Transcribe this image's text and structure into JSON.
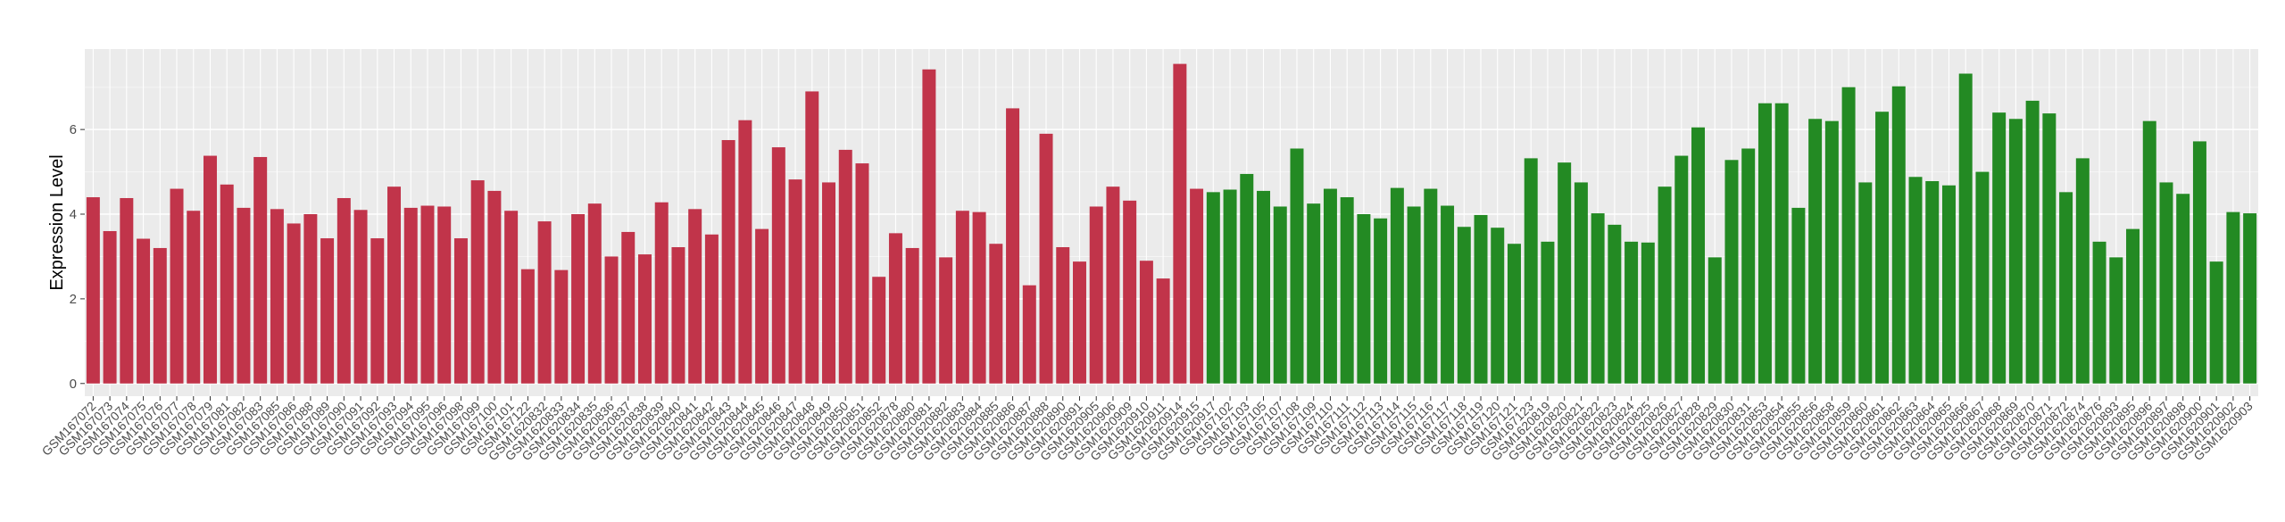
{
  "chart_data": {
    "type": "bar",
    "title": "",
    "xlabel": "",
    "ylabel": "Expression Level",
    "ylim": [
      -0.3,
      7.9
    ],
    "yticks": [
      0,
      2,
      4,
      6
    ],
    "grid": true,
    "legend": "none",
    "colors": {
      "group_a": "#C1344A",
      "group_b": "#238A23",
      "panel_bg": "#EBEBEB",
      "grid_major": "#FFFFFF"
    },
    "bars": [
      {
        "label": "GSM167072",
        "value": 4.4,
        "group": "a"
      },
      {
        "label": "GSM167073",
        "value": 3.6,
        "group": "a"
      },
      {
        "label": "GSM167074",
        "value": 4.38,
        "group": "a"
      },
      {
        "label": "GSM167075",
        "value": 3.42,
        "group": "a"
      },
      {
        "label": "GSM167076",
        "value": 3.2,
        "group": "a"
      },
      {
        "label": "GSM167077",
        "value": 4.6,
        "group": "a"
      },
      {
        "label": "GSM167078",
        "value": 4.08,
        "group": "a"
      },
      {
        "label": "GSM167079",
        "value": 5.38,
        "group": "a"
      },
      {
        "label": "GSM167081",
        "value": 4.7,
        "group": "a"
      },
      {
        "label": "GSM167082",
        "value": 4.15,
        "group": "a"
      },
      {
        "label": "GSM167083",
        "value": 5.35,
        "group": "a"
      },
      {
        "label": "GSM167085",
        "value": 4.12,
        "group": "a"
      },
      {
        "label": "GSM167086",
        "value": 3.78,
        "group": "a"
      },
      {
        "label": "GSM167088",
        "value": 4.0,
        "group": "a"
      },
      {
        "label": "GSM167089",
        "value": 3.43,
        "group": "a"
      },
      {
        "label": "GSM167090",
        "value": 4.38,
        "group": "a"
      },
      {
        "label": "GSM167091",
        "value": 4.1,
        "group": "a"
      },
      {
        "label": "GSM167092",
        "value": 3.43,
        "group": "a"
      },
      {
        "label": "GSM167093",
        "value": 4.65,
        "group": "a"
      },
      {
        "label": "GSM167094",
        "value": 4.15,
        "group": "a"
      },
      {
        "label": "GSM167095",
        "value": 4.2,
        "group": "a"
      },
      {
        "label": "GSM167096",
        "value": 4.18,
        "group": "a"
      },
      {
        "label": "GSM167098",
        "value": 3.43,
        "group": "a"
      },
      {
        "label": "GSM167099",
        "value": 4.8,
        "group": "a"
      },
      {
        "label": "GSM167100",
        "value": 4.55,
        "group": "a"
      },
      {
        "label": "GSM167101",
        "value": 4.08,
        "group": "a"
      },
      {
        "label": "GSM167122",
        "value": 2.7,
        "group": "a"
      },
      {
        "label": "GSM1620832",
        "value": 3.83,
        "group": "a"
      },
      {
        "label": "GSM1620833",
        "value": 2.68,
        "group": "a"
      },
      {
        "label": "GSM1620834",
        "value": 4.0,
        "group": "a"
      },
      {
        "label": "GSM1620835",
        "value": 4.25,
        "group": "a"
      },
      {
        "label": "GSM1620836",
        "value": 3.0,
        "group": "a"
      },
      {
        "label": "GSM1620837",
        "value": 3.58,
        "group": "a"
      },
      {
        "label": "GSM1620838",
        "value": 3.05,
        "group": "a"
      },
      {
        "label": "GSM1620839",
        "value": 4.28,
        "group": "a"
      },
      {
        "label": "GSM1620840",
        "value": 3.22,
        "group": "a"
      },
      {
        "label": "GSM1620841",
        "value": 4.12,
        "group": "a"
      },
      {
        "label": "GSM1620842",
        "value": 3.52,
        "group": "a"
      },
      {
        "label": "GSM1620843",
        "value": 5.75,
        "group": "a"
      },
      {
        "label": "GSM1620844",
        "value": 6.22,
        "group": "a"
      },
      {
        "label": "GSM1620845",
        "value": 3.65,
        "group": "a"
      },
      {
        "label": "GSM1620846",
        "value": 5.58,
        "group": "a"
      },
      {
        "label": "GSM1620847",
        "value": 4.82,
        "group": "a"
      },
      {
        "label": "GSM1620848",
        "value": 6.9,
        "group": "a"
      },
      {
        "label": "GSM1620849",
        "value": 4.75,
        "group": "a"
      },
      {
        "label": "GSM1620850",
        "value": 5.52,
        "group": "a"
      },
      {
        "label": "GSM1620851",
        "value": 5.2,
        "group": "a"
      },
      {
        "label": "GSM1620852",
        "value": 2.52,
        "group": "a"
      },
      {
        "label": "GSM1620878",
        "value": 3.55,
        "group": "a"
      },
      {
        "label": "GSM1620880",
        "value": 3.2,
        "group": "a"
      },
      {
        "label": "GSM1620881",
        "value": 7.42,
        "group": "a"
      },
      {
        "label": "GSM1620882",
        "value": 2.98,
        "group": "a"
      },
      {
        "label": "GSM1620883",
        "value": 4.08,
        "group": "a"
      },
      {
        "label": "GSM1620884",
        "value": 4.05,
        "group": "a"
      },
      {
        "label": "GSM1620885",
        "value": 3.3,
        "group": "a"
      },
      {
        "label": "GSM1620886",
        "value": 6.5,
        "group": "a"
      },
      {
        "label": "GSM1620887",
        "value": 2.32,
        "group": "a"
      },
      {
        "label": "GSM1620888",
        "value": 5.9,
        "group": "a"
      },
      {
        "label": "GSM1620890",
        "value": 3.22,
        "group": "a"
      },
      {
        "label": "GSM1620891",
        "value": 2.88,
        "group": "a"
      },
      {
        "label": "GSM1620905",
        "value": 4.18,
        "group": "a"
      },
      {
        "label": "GSM1620906",
        "value": 4.65,
        "group": "a"
      },
      {
        "label": "GSM1620909",
        "value": 4.32,
        "group": "a"
      },
      {
        "label": "GSM1620910",
        "value": 2.9,
        "group": "a"
      },
      {
        "label": "GSM1620911",
        "value": 2.48,
        "group": "a"
      },
      {
        "label": "GSM1620914",
        "value": 7.55,
        "group": "a"
      },
      {
        "label": "GSM1620915",
        "value": 4.6,
        "group": "a"
      },
      {
        "label": "GSM1620917",
        "value": 4.52,
        "group": "b"
      },
      {
        "label": "GSM167102",
        "value": 4.58,
        "group": "b"
      },
      {
        "label": "GSM167103",
        "value": 4.95,
        "group": "b"
      },
      {
        "label": "GSM167105",
        "value": 4.55,
        "group": "b"
      },
      {
        "label": "GSM167107",
        "value": 4.18,
        "group": "b"
      },
      {
        "label": "GSM167108",
        "value": 5.55,
        "group": "b"
      },
      {
        "label": "GSM167109",
        "value": 4.25,
        "group": "b"
      },
      {
        "label": "GSM167110",
        "value": 4.6,
        "group": "b"
      },
      {
        "label": "GSM167111",
        "value": 4.4,
        "group": "b"
      },
      {
        "label": "GSM167112",
        "value": 4.0,
        "group": "b"
      },
      {
        "label": "GSM167113",
        "value": 3.9,
        "group": "b"
      },
      {
        "label": "GSM167114",
        "value": 4.62,
        "group": "b"
      },
      {
        "label": "GSM167115",
        "value": 4.18,
        "group": "b"
      },
      {
        "label": "GSM167116",
        "value": 4.6,
        "group": "b"
      },
      {
        "label": "GSM167117",
        "value": 4.2,
        "group": "b"
      },
      {
        "label": "GSM167118",
        "value": 3.7,
        "group": "b"
      },
      {
        "label": "GSM167119",
        "value": 3.98,
        "group": "b"
      },
      {
        "label": "GSM167120",
        "value": 3.68,
        "group": "b"
      },
      {
        "label": "GSM167121",
        "value": 3.3,
        "group": "b"
      },
      {
        "label": "GSM167123",
        "value": 5.32,
        "group": "b"
      },
      {
        "label": "GSM1620819",
        "value": 3.35,
        "group": "b"
      },
      {
        "label": "GSM1620820",
        "value": 5.22,
        "group": "b"
      },
      {
        "label": "GSM1620821",
        "value": 4.75,
        "group": "b"
      },
      {
        "label": "GSM1620822",
        "value": 4.02,
        "group": "b"
      },
      {
        "label": "GSM1620823",
        "value": 3.75,
        "group": "b"
      },
      {
        "label": "GSM1620824",
        "value": 3.35,
        "group": "b"
      },
      {
        "label": "GSM1620825",
        "value": 3.33,
        "group": "b"
      },
      {
        "label": "GSM1620826",
        "value": 4.65,
        "group": "b"
      },
      {
        "label": "GSM1620827",
        "value": 5.38,
        "group": "b"
      },
      {
        "label": "GSM1620828",
        "value": 6.05,
        "group": "b"
      },
      {
        "label": "GSM1620829",
        "value": 2.98,
        "group": "b"
      },
      {
        "label": "GSM1620830",
        "value": 5.28,
        "group": "b"
      },
      {
        "label": "GSM1620831",
        "value": 5.55,
        "group": "b"
      },
      {
        "label": "GSM1620853",
        "value": 6.62,
        "group": "b"
      },
      {
        "label": "GSM1620854",
        "value": 6.62,
        "group": "b"
      },
      {
        "label": "GSM1620855",
        "value": 4.15,
        "group": "b"
      },
      {
        "label": "GSM1620856",
        "value": 6.25,
        "group": "b"
      },
      {
        "label": "GSM1620858",
        "value": 6.2,
        "group": "b"
      },
      {
        "label": "GSM1620859",
        "value": 7.0,
        "group": "b"
      },
      {
        "label": "GSM1620860",
        "value": 4.75,
        "group": "b"
      },
      {
        "label": "GSM1620861",
        "value": 6.42,
        "group": "b"
      },
      {
        "label": "GSM1620862",
        "value": 7.02,
        "group": "b"
      },
      {
        "label": "GSM1620863",
        "value": 4.88,
        "group": "b"
      },
      {
        "label": "GSM1620864",
        "value": 4.78,
        "group": "b"
      },
      {
        "label": "GSM1620865",
        "value": 4.68,
        "group": "b"
      },
      {
        "label": "GSM1620866",
        "value": 7.32,
        "group": "b"
      },
      {
        "label": "GSM1620867",
        "value": 5.0,
        "group": "b"
      },
      {
        "label": "GSM1620868",
        "value": 6.4,
        "group": "b"
      },
      {
        "label": "GSM1620869",
        "value": 6.25,
        "group": "b"
      },
      {
        "label": "GSM1620870",
        "value": 6.68,
        "group": "b"
      },
      {
        "label": "GSM1620871",
        "value": 6.38,
        "group": "b"
      },
      {
        "label": "GSM1620872",
        "value": 4.52,
        "group": "b"
      },
      {
        "label": "GSM1620874",
        "value": 5.32,
        "group": "b"
      },
      {
        "label": "GSM1620876",
        "value": 3.35,
        "group": "b"
      },
      {
        "label": "GSM1620893",
        "value": 2.98,
        "group": "b"
      },
      {
        "label": "GSM1620895",
        "value": 3.65,
        "group": "b"
      },
      {
        "label": "GSM1620896",
        "value": 6.2,
        "group": "b"
      },
      {
        "label": "GSM1620897",
        "value": 4.75,
        "group": "b"
      },
      {
        "label": "GSM1620898",
        "value": 4.48,
        "group": "b"
      },
      {
        "label": "GSM1620900",
        "value": 5.72,
        "group": "b"
      },
      {
        "label": "GSM1620901",
        "value": 2.88,
        "group": "b"
      },
      {
        "label": "GSM1620902",
        "value": 4.05,
        "group": "b"
      },
      {
        "label": "GSM1620903",
        "value": 4.02,
        "group": "b"
      }
    ]
  }
}
